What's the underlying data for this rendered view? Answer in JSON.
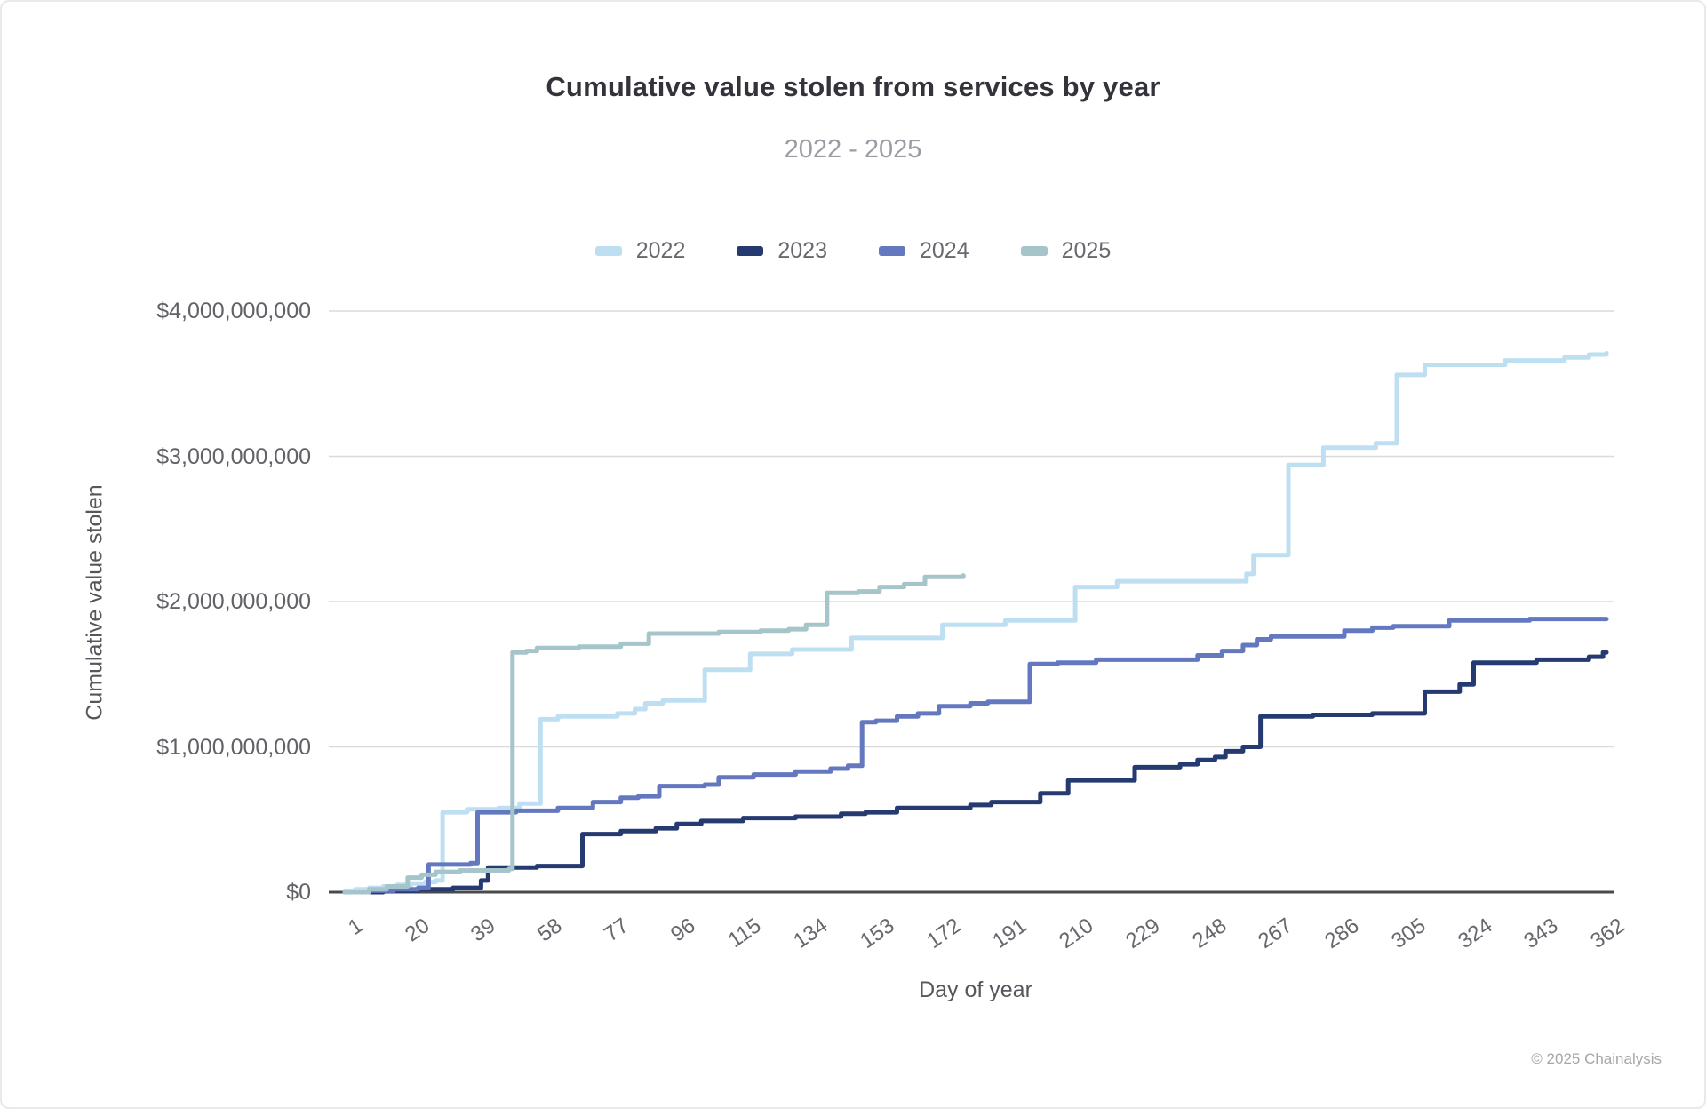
{
  "header": {
    "title": "Cumulative value stolen from services by year",
    "subtitle": "2022 - 2025"
  },
  "footer": {
    "copyright": "© 2025 Chainalysis"
  },
  "colors": {
    "series_2022": "#bedff1",
    "series_2023": "#263a72",
    "series_2024": "#6478c0",
    "series_2025": "#a5c5cb",
    "gridline": "#dadada",
    "axis_line": "#4a4a4e",
    "title_text": "#33333b",
    "subtitle_text": "#9b9ca3",
    "tick_text": "#66686d",
    "axis_title_text": "#55575c"
  },
  "chart_data": {
    "type": "line",
    "line_style": "step-after",
    "title": "Cumulative value stolen from services by year",
    "subtitle": "2022 - 2025",
    "xlabel": "Day of year",
    "ylabel": "Cumulative value stolen",
    "xlim": [
      1,
      362
    ],
    "ylim_usd": [
      0,
      4000000000
    ],
    "grid": "horizontal-only",
    "legend_position": "top-center",
    "x_ticks": [
      1,
      20,
      39,
      58,
      77,
      96,
      115,
      134,
      153,
      172,
      191,
      210,
      229,
      248,
      267,
      286,
      305,
      324,
      343,
      362
    ],
    "y_ticks": [
      {
        "value_billion": 0,
        "label": "$0"
      },
      {
        "value_billion": 1,
        "label": "$1,000,000,000"
      },
      {
        "value_billion": 2,
        "label": "$2,000,000,000"
      },
      {
        "value_billion": 3,
        "label": "$3,000,000,000"
      },
      {
        "value_billion": 4,
        "label": "$4,000,000,000"
      }
    ],
    "value_unit": "USD billions",
    "series": [
      {
        "name": "2022",
        "color": "#bedff1",
        "points_day_vs_billion": [
          [
            1,
            0.01
          ],
          [
            4,
            0.02
          ],
          [
            8,
            0.03
          ],
          [
            12,
            0.04
          ],
          [
            16,
            0.05
          ],
          [
            20,
            0.06
          ],
          [
            24,
            0.07
          ],
          [
            27,
            0.08
          ],
          [
            29,
            0.55
          ],
          [
            36,
            0.57
          ],
          [
            45,
            0.58
          ],
          [
            51,
            0.61
          ],
          [
            57,
            1.19
          ],
          [
            62,
            1.21
          ],
          [
            79,
            1.23
          ],
          [
            84,
            1.26
          ],
          [
            87,
            1.3
          ],
          [
            92,
            1.32
          ],
          [
            104,
            1.53
          ],
          [
            117,
            1.64
          ],
          [
            129,
            1.67
          ],
          [
            146,
            1.75
          ],
          [
            172,
            1.84
          ],
          [
            190,
            1.87
          ],
          [
            210,
            2.1
          ],
          [
            222,
            2.14
          ],
          [
            259,
            2.19
          ],
          [
            261,
            2.32
          ],
          [
            271,
            2.94
          ],
          [
            281,
            3.06
          ],
          [
            296,
            3.09
          ],
          [
            302,
            3.56
          ],
          [
            310,
            3.63
          ],
          [
            333,
            3.66
          ],
          [
            350,
            3.68
          ],
          [
            357,
            3.7
          ],
          [
            362,
            3.71
          ]
        ]
      },
      {
        "name": "2023",
        "color": "#263a72",
        "points_day_vs_billion": [
          [
            1,
            0.0
          ],
          [
            12,
            0.01
          ],
          [
            22,
            0.02
          ],
          [
            32,
            0.03
          ],
          [
            40,
            0.08
          ],
          [
            42,
            0.17
          ],
          [
            56,
            0.18
          ],
          [
            69,
            0.4
          ],
          [
            80,
            0.42
          ],
          [
            90,
            0.44
          ],
          [
            96,
            0.47
          ],
          [
            103,
            0.49
          ],
          [
            115,
            0.51
          ],
          [
            130,
            0.52
          ],
          [
            143,
            0.54
          ],
          [
            150,
            0.55
          ],
          [
            159,
            0.58
          ],
          [
            180,
            0.6
          ],
          [
            186,
            0.62
          ],
          [
            200,
            0.68
          ],
          [
            208,
            0.77
          ],
          [
            227,
            0.86
          ],
          [
            240,
            0.88
          ],
          [
            245,
            0.91
          ],
          [
            250,
            0.93
          ],
          [
            253,
            0.97
          ],
          [
            258,
            1.0
          ],
          [
            263,
            1.21
          ],
          [
            278,
            1.22
          ],
          [
            295,
            1.23
          ],
          [
            310,
            1.38
          ],
          [
            320,
            1.43
          ],
          [
            324,
            1.58
          ],
          [
            342,
            1.6
          ],
          [
            357,
            1.62
          ],
          [
            361,
            1.65
          ],
          [
            362,
            1.65
          ]
        ]
      },
      {
        "name": "2024",
        "color": "#6478c0",
        "points_day_vs_billion": [
          [
            1,
            0.0
          ],
          [
            8,
            0.01
          ],
          [
            15,
            0.02
          ],
          [
            22,
            0.03
          ],
          [
            25,
            0.19
          ],
          [
            37,
            0.2
          ],
          [
            39,
            0.55
          ],
          [
            50,
            0.56
          ],
          [
            62,
            0.58
          ],
          [
            72,
            0.62
          ],
          [
            80,
            0.65
          ],
          [
            85,
            0.66
          ],
          [
            91,
            0.73
          ],
          [
            104,
            0.74
          ],
          [
            108,
            0.79
          ],
          [
            118,
            0.81
          ],
          [
            130,
            0.83
          ],
          [
            140,
            0.85
          ],
          [
            145,
            0.87
          ],
          [
            149,
            1.17
          ],
          [
            153,
            1.18
          ],
          [
            159,
            1.21
          ],
          [
            165,
            1.23
          ],
          [
            171,
            1.28
          ],
          [
            180,
            1.3
          ],
          [
            185,
            1.31
          ],
          [
            197,
            1.57
          ],
          [
            205,
            1.58
          ],
          [
            216,
            1.6
          ],
          [
            245,
            1.63
          ],
          [
            252,
            1.66
          ],
          [
            258,
            1.7
          ],
          [
            262,
            1.74
          ],
          [
            266,
            1.76
          ],
          [
            287,
            1.8
          ],
          [
            295,
            1.82
          ],
          [
            301,
            1.83
          ],
          [
            317,
            1.87
          ],
          [
            340,
            1.88
          ],
          [
            362,
            1.88
          ]
        ]
      },
      {
        "name": "2025",
        "color": "#a5c5cb",
        "points_day_vs_billion": [
          [
            1,
            0.0
          ],
          [
            8,
            0.02
          ],
          [
            13,
            0.04
          ],
          [
            19,
            0.1
          ],
          [
            23,
            0.12
          ],
          [
            27,
            0.14
          ],
          [
            34,
            0.15
          ],
          [
            48,
            0.16
          ],
          [
            49,
            1.65
          ],
          [
            53,
            1.66
          ],
          [
            56,
            1.68
          ],
          [
            68,
            1.69
          ],
          [
            80,
            1.71
          ],
          [
            88,
            1.78
          ],
          [
            108,
            1.79
          ],
          [
            120,
            1.8
          ],
          [
            128,
            1.81
          ],
          [
            133,
            1.84
          ],
          [
            139,
            2.06
          ],
          [
            148,
            2.07
          ],
          [
            154,
            2.1
          ],
          [
            161,
            2.12
          ],
          [
            167,
            2.17
          ],
          [
            178,
            2.18
          ]
        ]
      }
    ]
  }
}
